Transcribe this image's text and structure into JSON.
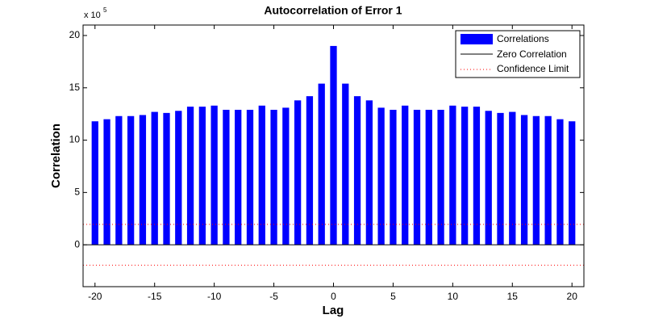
{
  "chart_data": {
    "type": "bar",
    "title": "Autocorrelation of Error 1",
    "x_label": "Lag",
    "y_label": "Correlation",
    "y_exponent_base": "x 10",
    "y_exponent": "5",
    "x": [
      -20,
      -19,
      -18,
      -17,
      -16,
      -15,
      -14,
      -13,
      -12,
      -11,
      -10,
      -9,
      -8,
      -7,
      -6,
      -5,
      -4,
      -3,
      -2,
      -1,
      0,
      1,
      2,
      3,
      4,
      5,
      6,
      7,
      8,
      9,
      10,
      11,
      12,
      13,
      14,
      15,
      16,
      17,
      18,
      19,
      20
    ],
    "series": [
      {
        "name": "Correlations",
        "color": "#0000ff",
        "values": [
          11.8,
          12.0,
          12.3,
          12.3,
          12.4,
          12.7,
          12.6,
          12.8,
          13.2,
          13.2,
          13.3,
          12.9,
          12.9,
          12.9,
          13.3,
          12.9,
          13.1,
          13.8,
          14.2,
          15.4,
          19.0,
          15.4,
          14.2,
          13.8,
          13.1,
          12.9,
          13.3,
          12.9,
          12.9,
          12.9,
          13.3,
          13.2,
          13.2,
          12.8,
          12.6,
          12.7,
          12.4,
          12.3,
          12.3,
          12.0,
          11.8
        ]
      }
    ],
    "zero_line": {
      "name": "Zero Correlation",
      "color": "#000000",
      "value": 0
    },
    "confidence_limit": {
      "name": "Confidence Limit",
      "color": "#ff0000",
      "values": [
        1.95,
        -1.95
      ]
    },
    "xlim": [
      -21,
      21
    ],
    "ylim": [
      -4,
      21
    ],
    "xticks": [
      -20,
      -15,
      -10,
      -5,
      0,
      5,
      10,
      15,
      20
    ],
    "yticks": [
      0,
      5,
      10,
      15,
      20
    ],
    "grid": false,
    "legend": "upper right"
  }
}
